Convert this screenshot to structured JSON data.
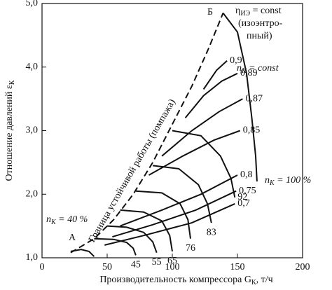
{
  "chart_data": {
    "type": "line",
    "y_label": {
      "text": "Отношение давлений ε",
      "sub": "К"
    },
    "x_label": {
      "text": "Производительность компрессора G",
      "sub": "К",
      "after": ", т/ч"
    },
    "xlim": [
      0,
      200
    ],
    "xticks": [
      0,
      50,
      100,
      150,
      200
    ],
    "ylim": [
      1,
      5
    ],
    "yticks": [
      {
        "value": 1,
        "label": "1,0"
      },
      {
        "value": 2,
        "label": "2,0"
      },
      {
        "value": 3,
        "label": "3,0"
      },
      {
        "value": 4,
        "label": "4,0"
      },
      {
        "value": 5,
        "label": "5,0"
      }
    ],
    "series": [
      {
        "name": "Граница устойчивой работы (помпажа)",
        "color": "#111",
        "dashed": true,
        "x": [
          22,
          40,
          55,
          70,
          85,
          100,
          115,
          128,
          139
        ],
        "values": [
          1.08,
          1.3,
          1.6,
          2.0,
          2.5,
          3.1,
          3.7,
          4.3,
          4.85
        ]
      },
      {
        "color": "#111",
        "x": [
          22,
          30,
          36,
          40
        ],
        "values": [
          1.1,
          1.13,
          1.1,
          1.02
        ]
      },
      {
        "name": "45",
        "color": "#111",
        "x": [
          40,
          55,
          65,
          70,
          72
        ],
        "values": [
          1.3,
          1.29,
          1.24,
          1.15,
          1.04
        ]
      },
      {
        "name": "55",
        "color": "#111",
        "x": [
          50,
          65,
          78,
          85,
          88
        ],
        "values": [
          1.5,
          1.48,
          1.4,
          1.25,
          1.08
        ]
      },
      {
        "name": "65",
        "color": "#111",
        "x": [
          60,
          78,
          92,
          98,
          100
        ],
        "values": [
          1.75,
          1.72,
          1.58,
          1.35,
          1.1
        ]
      },
      {
        "name": "76",
        "color": "#111",
        "x": [
          72,
          92,
          106,
          112,
          114
        ],
        "values": [
          2.05,
          2.02,
          1.85,
          1.6,
          1.3
        ]
      },
      {
        "name": "83",
        "color": "#111",
        "x": [
          85,
          105,
          120,
          127,
          130
        ],
        "values": [
          2.45,
          2.4,
          2.15,
          1.85,
          1.55
        ]
      },
      {
        "name": "92",
        "color": "#111",
        "x": [
          100,
          122,
          137,
          145,
          148
        ],
        "values": [
          3.0,
          2.92,
          2.6,
          2.25,
          1.95
        ]
      },
      {
        "color": "#111",
        "x": [
          139,
          150,
          157,
          161,
          164,
          165
        ],
        "values": [
          4.85,
          4.55,
          3.9,
          3.2,
          2.6,
          2.2
        ]
      },
      {
        "name": "0,7",
        "color": "#111",
        "x": [
          48,
          80,
          115,
          148
        ],
        "values": [
          1.2,
          1.36,
          1.55,
          1.85
        ]
      },
      {
        "name": "0,75",
        "color": "#111",
        "x": [
          54,
          85,
          118,
          149
        ],
        "values": [
          1.33,
          1.52,
          1.75,
          2.05
        ]
      },
      {
        "name": "0,8",
        "color": "#111",
        "x": [
          60,
          92,
          122,
          150
        ],
        "values": [
          1.5,
          1.75,
          2.0,
          2.3
        ]
      },
      {
        "name": "0,85",
        "color": "#111",
        "x": [
          82,
          108,
          132,
          152
        ],
        "values": [
          2.3,
          2.6,
          2.85,
          3.0
        ]
      },
      {
        "name": "0,87",
        "color": "#111",
        "x": [
          92,
          115,
          136,
          154
        ],
        "values": [
          2.6,
          3.0,
          3.3,
          3.5
        ]
      },
      {
        "name": "0,89",
        "color": "#111",
        "x": [
          110,
          124,
          138,
          150
        ],
        "values": [
          3.2,
          3.55,
          3.78,
          3.9
        ]
      },
      {
        "name": "0,9",
        "color": "#111",
        "x": [
          124,
          134,
          142
        ],
        "values": [
          3.65,
          3.95,
          4.1
        ]
      }
    ],
    "annotations": [
      {
        "text": "Б"
      },
      {
        "text": "А"
      },
      {
        "text": "η",
        "sub": "ИЭ",
        "after": " = const"
      },
      {
        "text": "(изоэнтро-"
      },
      {
        "text": "пный)"
      },
      {
        "text": "n",
        "sub": "К",
        "after": " = const"
      },
      {
        "text": "n",
        "sub": "К",
        "after": " = 40 %"
      },
      {
        "text": "n",
        "sub": "К",
        "after": " = 100 %"
      }
    ]
  }
}
